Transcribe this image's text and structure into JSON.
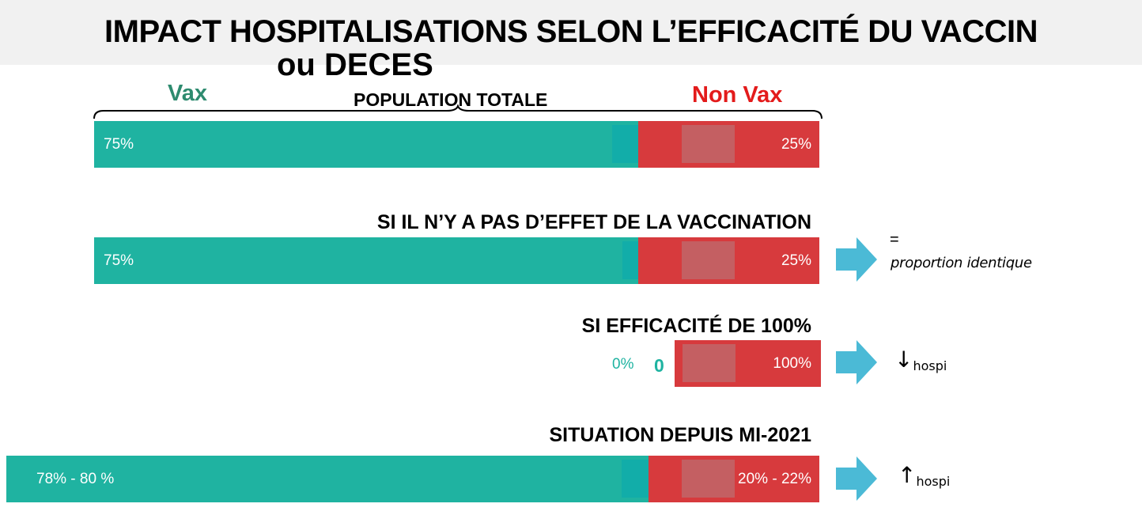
{
  "title": {
    "line1": "IMPACT HOSPITALISATIONS SELON L’EFFICACITÉ DU VACCIN",
    "line2": "ou DECES"
  },
  "header": {
    "vax_label": "Vax",
    "nonvax_label": "Non Vax",
    "population_label": "POPULATION TOTALE"
  },
  "rows": {
    "no_effect_title": "SI IL N’Y A PAS D’EFFET DE LA VACCINATION",
    "full_efficacy_title": "SI EFFICACITÉ DE 100%",
    "since_2021_title": "SITUATION DEPUIS MI-2021"
  },
  "notes": {
    "equal_sign": "=",
    "identical": "proportion identique",
    "down_arrow": "↓",
    "up_arrow": "↑",
    "hospi": "hospi"
  },
  "colors": {
    "vax": "#1fb3a1",
    "nonvax": "#d73a3d",
    "arrow": "#4bbad6",
    "vax_label": "#2e8b6f",
    "nonvax_label": "#e31b1b"
  },
  "chart_data": {
    "type": "bar",
    "orientation": "horizontal-stacked",
    "series_names": [
      "Vax",
      "Non Vax"
    ],
    "bars": [
      {
        "name": "population-totale",
        "vax": 75,
        "nonvax": 25,
        "vax_label": "75%",
        "nonvax_label": "25%"
      },
      {
        "name": "sans-effet",
        "vax": 75,
        "nonvax": 25,
        "vax_label": "75%",
        "nonvax_label": "25%"
      },
      {
        "name": "efficacite-100",
        "vax": 0,
        "nonvax": 100,
        "vax_label": "0%",
        "vax_extra": "0",
        "nonvax_label": "100%"
      },
      {
        "name": "depuis-mi-2021",
        "vax": 79,
        "nonvax": 21,
        "vax_label": "78% - 80 %",
        "nonvax_label": "20% - 22%"
      }
    ]
  }
}
